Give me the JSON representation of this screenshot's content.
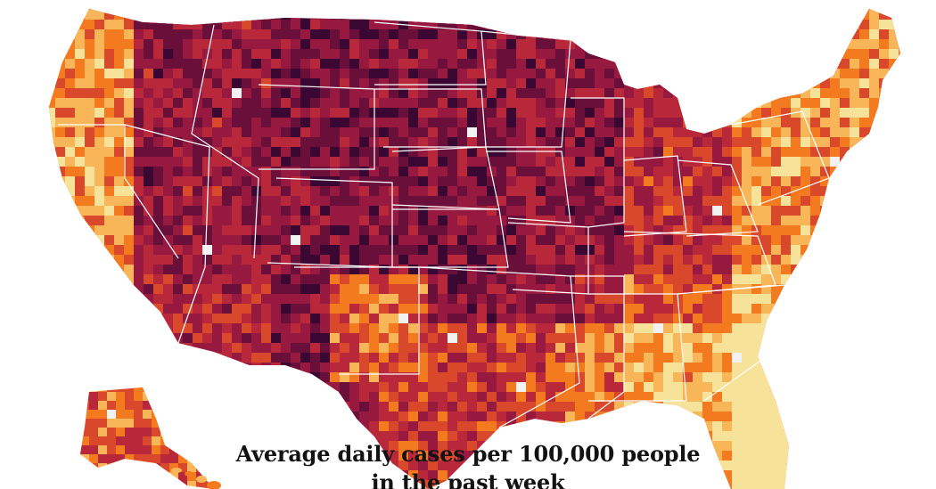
{
  "caption": {
    "line1": "Average daily cases per 100,000 people",
    "line2": "in the past week"
  },
  "palette": {
    "lightest": "#f7e29a",
    "light": "#f9b659",
    "orange": "#f47a20",
    "red_orange": "#d9482b",
    "red": "#b8283a",
    "crimson": "#98193f",
    "dark": "#6a0f3a",
    "darkest": "#3a0732",
    "no_data": "#f2f2f2",
    "border": "#ffffff"
  }
}
